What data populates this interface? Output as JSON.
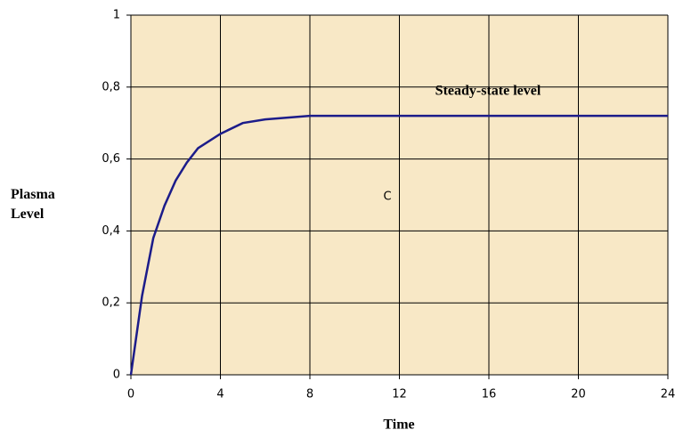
{
  "chart_data": {
    "type": "line",
    "x_label": "Time",
    "y_label": "Plasma Level",
    "annotations": [
      "Steady-state level",
      "C"
    ],
    "x": [
      0,
      0.5,
      1,
      1.5,
      2,
      2.5,
      3,
      4,
      5,
      6,
      8,
      12,
      16,
      20,
      24
    ],
    "values": [
      0,
      0.22,
      0.38,
      0.47,
      0.54,
      0.59,
      0.63,
      0.67,
      0.7,
      0.71,
      0.72,
      0.72,
      0.72,
      0.72,
      0.72
    ],
    "color": "#1c1c8a",
    "xlim": [
      0,
      24
    ],
    "xticks": [
      0,
      4,
      8,
      12,
      16,
      20,
      24
    ],
    "ylim": [
      0,
      1
    ],
    "yticks": [
      0,
      {
        "value": 0.2,
        "label": "0,2"
      },
      {
        "value": 0.4,
        "label": "0,4"
      },
      {
        "value": 0.6,
        "label": "0,6"
      },
      {
        "value": 0.8,
        "label": "0,8"
      },
      1
    ],
    "grid": true
  }
}
